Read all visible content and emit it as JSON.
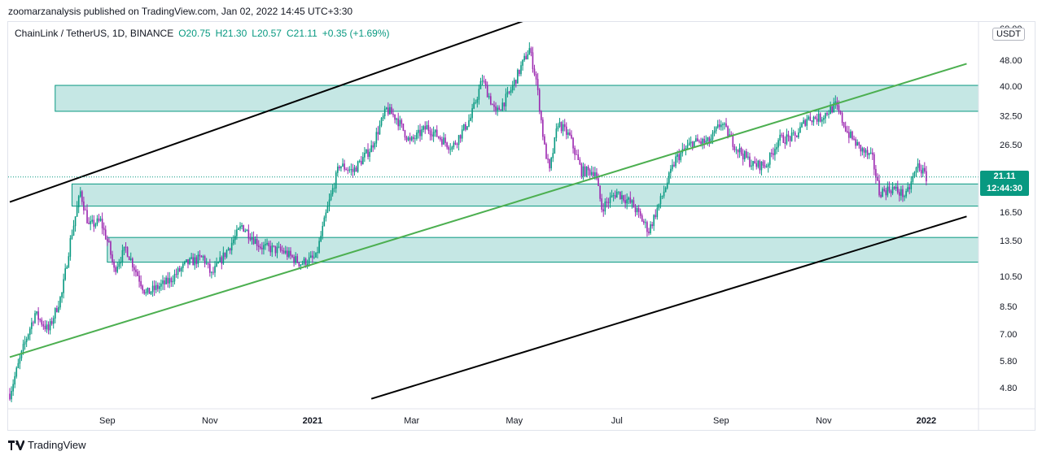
{
  "publisher": "zoomarzanalysis published on TradingView.com, Jan 02, 2022 14:45 UTC+3:30",
  "footer": {
    "brand": "TradingView"
  },
  "chart_data": {
    "type": "candlestick",
    "symbol": "ChainLink / TetherUS, 1D, BINANCE",
    "ohlc": {
      "open": "O20.75",
      "high": "H21.30",
      "low": "L20.57",
      "close": "C21.11",
      "change": "+0.35 (+1.69%)"
    },
    "currency": "USDT",
    "scale": "log",
    "last_price": {
      "value": "21.11",
      "countdown": "12:44:30"
    },
    "y_ticks": [
      4.8,
      5.8,
      7.0,
      8.5,
      10.5,
      13.5,
      16.5,
      21.11,
      26.5,
      32.5,
      40.0,
      48.0,
      60.0
    ],
    "y_tick_labels": [
      "4.80",
      "5.80",
      "7.00",
      "8.50",
      "10.50",
      "13.50",
      "16.50",
      "26.50",
      "32.50",
      "40.00",
      "48.00",
      "60.00"
    ],
    "x_ticks": [
      {
        "label": "Sep",
        "date": "2020-09-01",
        "bold": false
      },
      {
        "label": "Nov",
        "date": "2020-11-01",
        "bold": false
      },
      {
        "label": "2021",
        "date": "2021-01-01",
        "bold": true
      },
      {
        "label": "Mar",
        "date": "2021-03-01",
        "bold": false
      },
      {
        "label": "May",
        "date": "2021-05-01",
        "bold": false
      },
      {
        "label": "Jul",
        "date": "2021-07-01",
        "bold": false
      },
      {
        "label": "Sep",
        "date": "2021-09-01",
        "bold": false
      },
      {
        "label": "Nov",
        "date": "2021-11-01",
        "bold": false
      },
      {
        "label": "2022",
        "date": "2022-01-01",
        "bold": true
      }
    ],
    "date_range": [
      "2020-07-05",
      "2022-01-03"
    ],
    "price_path": [
      [
        "2020-07-05",
        4.6
      ],
      [
        "2020-07-14",
        6.6
      ],
      [
        "2020-07-20",
        8.1
      ],
      [
        "2020-07-25",
        7.5
      ],
      [
        "2020-07-28",
        7.2
      ],
      [
        "2020-08-05",
        9.3
      ],
      [
        "2020-08-10",
        13.5
      ],
      [
        "2020-08-16",
        19.0
      ],
      [
        "2020-08-21",
        15.0
      ],
      [
        "2020-08-28",
        15.5
      ],
      [
        "2020-09-02",
        13.0
      ],
      [
        "2020-09-05",
        11.0
      ],
      [
        "2020-09-12",
        12.8
      ],
      [
        "2020-09-24",
        9.3
      ],
      [
        "2020-10-08",
        10.2
      ],
      [
        "2020-10-18",
        11.5
      ],
      [
        "2020-10-28",
        12.0
      ],
      [
        "2020-11-02",
        10.6
      ],
      [
        "2020-11-12",
        12.8
      ],
      [
        "2020-11-20",
        15.0
      ],
      [
        "2020-12-01",
        13.0
      ],
      [
        "2020-12-15",
        12.5
      ],
      [
        "2020-12-25",
        11.5
      ],
      [
        "2020-12-30",
        11.8
      ],
      [
        "2021-01-03",
        12.0
      ],
      [
        "2021-01-10",
        17.0
      ],
      [
        "2021-01-17",
        23.0
      ],
      [
        "2021-01-25",
        22.0
      ],
      [
        "2021-02-05",
        26.0
      ],
      [
        "2021-02-14",
        34.0
      ],
      [
        "2021-02-20",
        32.0
      ],
      [
        "2021-02-28",
        27.0
      ],
      [
        "2021-03-10",
        30.0
      ],
      [
        "2021-03-25",
        26.0
      ],
      [
        "2021-04-05",
        32.0
      ],
      [
        "2021-04-12",
        42.0
      ],
      [
        "2021-04-20",
        33.0
      ],
      [
        "2021-04-28",
        38.0
      ],
      [
        "2021-05-06",
        47.0
      ],
      [
        "2021-05-10",
        52.0
      ],
      [
        "2021-05-14",
        42.0
      ],
      [
        "2021-05-19",
        26.0
      ],
      [
        "2021-05-22",
        22.0
      ],
      [
        "2021-05-27",
        31.0
      ],
      [
        "2021-06-03",
        28.0
      ],
      [
        "2021-06-10",
        22.0
      ],
      [
        "2021-06-18",
        22.0
      ],
      [
        "2021-06-22",
        17.0
      ],
      [
        "2021-07-01",
        19.0
      ],
      [
        "2021-07-10",
        17.5
      ],
      [
        "2021-07-20",
        14.5
      ],
      [
        "2021-07-28",
        18.5
      ],
      [
        "2021-08-05",
        24.0
      ],
      [
        "2021-08-15",
        27.0
      ],
      [
        "2021-08-25",
        27.0
      ],
      [
        "2021-09-01",
        31.0
      ],
      [
        "2021-09-10",
        26.0
      ],
      [
        "2021-09-20",
        23.0
      ],
      [
        "2021-09-28",
        23.0
      ],
      [
        "2021-10-05",
        27.5
      ],
      [
        "2021-10-15",
        28.0
      ],
      [
        "2021-10-22",
        32.0
      ],
      [
        "2021-10-30",
        32.0
      ],
      [
        "2021-11-08",
        35.0
      ],
      [
        "2021-11-15",
        29.0
      ],
      [
        "2021-11-22",
        26.0
      ],
      [
        "2021-11-30",
        24.0
      ],
      [
        "2021-12-04",
        19.0
      ],
      [
        "2021-12-12",
        19.5
      ],
      [
        "2021-12-20",
        18.5
      ],
      [
        "2021-12-27",
        23.0
      ],
      [
        "2022-01-01",
        21.11
      ]
    ],
    "zones": [
      {
        "start": "2020-08-01",
        "end": "right-edge",
        "low": 33.5,
        "high": 40.2
      },
      {
        "start": "2020-08-11",
        "end": "right-edge",
        "low": 17.2,
        "high": 20.1
      },
      {
        "start": "2020-09-01",
        "end": "right-edge",
        "low": 11.6,
        "high": 13.8
      }
    ],
    "trendlines": [
      {
        "color": "#000000",
        "points": [
          [
            "2020-07-05",
            17.7
          ],
          [
            "2021-06-10",
            73.0
          ]
        ]
      },
      {
        "color": "#000000",
        "points": [
          [
            "2021-02-05",
            4.44
          ],
          [
            "2022-01-25",
            16.0
          ]
        ]
      },
      {
        "color": "#4caf50",
        "points": [
          [
            "2020-07-05",
            5.95
          ],
          [
            "2022-01-25",
            46.8
          ]
        ]
      }
    ],
    "colors": {
      "up": "#089981",
      "down": "#9c27b0",
      "zone_fill": "#b2dfdb",
      "zone_stroke": "#089981",
      "price_tag": "#089981"
    }
  }
}
